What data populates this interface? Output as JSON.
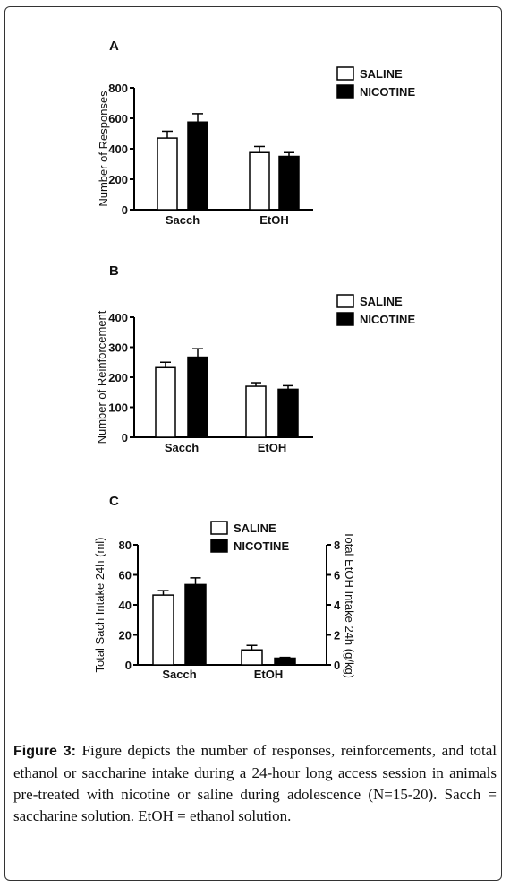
{
  "figure": {
    "caption_label": "Figure 3:",
    "caption_text": " Figure depicts the number of responses, reinforcements, and total ethanol or saccharine intake during a 24-hour long access session in animals pre-treated with nicotine or saline during adolescence (N=15-20). Sacch = saccharine solution. EtOH = ethanol solution."
  },
  "colors": {
    "saline_fill": "#ffffff",
    "nicotine_fill": "#000000",
    "stroke": "#000000"
  },
  "chart_data": [
    {
      "type": "bar",
      "panel_label": "A",
      "categories": [
        "Sacch",
        "EtOH"
      ],
      "ylabel": "Number of Responses",
      "ylim": [
        0,
        800
      ],
      "yticks": [
        0,
        200,
        400,
        600,
        800
      ],
      "legend": "top-right",
      "series": [
        {
          "name": "SALINE",
          "values": [
            470,
            375
          ],
          "errors": [
            45,
            40
          ]
        },
        {
          "name": "NICOTINE",
          "values": [
            575,
            350
          ],
          "errors": [
            55,
            25
          ]
        }
      ]
    },
    {
      "type": "bar",
      "panel_label": "B",
      "categories": [
        "Sacch",
        "EtOH"
      ],
      "ylabel": "Number of Reinforcement",
      "ylim": [
        0,
        400
      ],
      "yticks": [
        0,
        100,
        200,
        300,
        400
      ],
      "legend": "top-right",
      "series": [
        {
          "name": "SALINE",
          "values": [
            232,
            170
          ],
          "errors": [
            18,
            12
          ]
        },
        {
          "name": "NICOTINE",
          "values": [
            267,
            160
          ],
          "errors": [
            28,
            12
          ]
        }
      ]
    },
    {
      "type": "bar",
      "panel_label": "C",
      "categories": [
        "Sacch",
        "EtOH"
      ],
      "ylabel": "Total Sach Intake 24h (ml)",
      "ylim": [
        0,
        80
      ],
      "yticks": [
        0,
        20,
        40,
        60,
        80
      ],
      "ylabel_right": "Total EtOH Intake 24h (g/kg)",
      "ylim_right": [
        0,
        8
      ],
      "yticks_right": [
        0,
        2,
        4,
        6,
        8
      ],
      "legend": "top-center",
      "series": [
        {
          "name": "SALINE",
          "values": [
            46.5,
            1.0
          ],
          "errors": [
            3,
            0.3
          ]
        },
        {
          "name": "NICOTINE",
          "values": [
            53.5,
            0.45
          ],
          "errors": [
            4.5,
            0.05
          ]
        }
      ],
      "note": "Sacch bars use the left axis (ml); EtOH bars use the right axis (g/kg)"
    }
  ]
}
